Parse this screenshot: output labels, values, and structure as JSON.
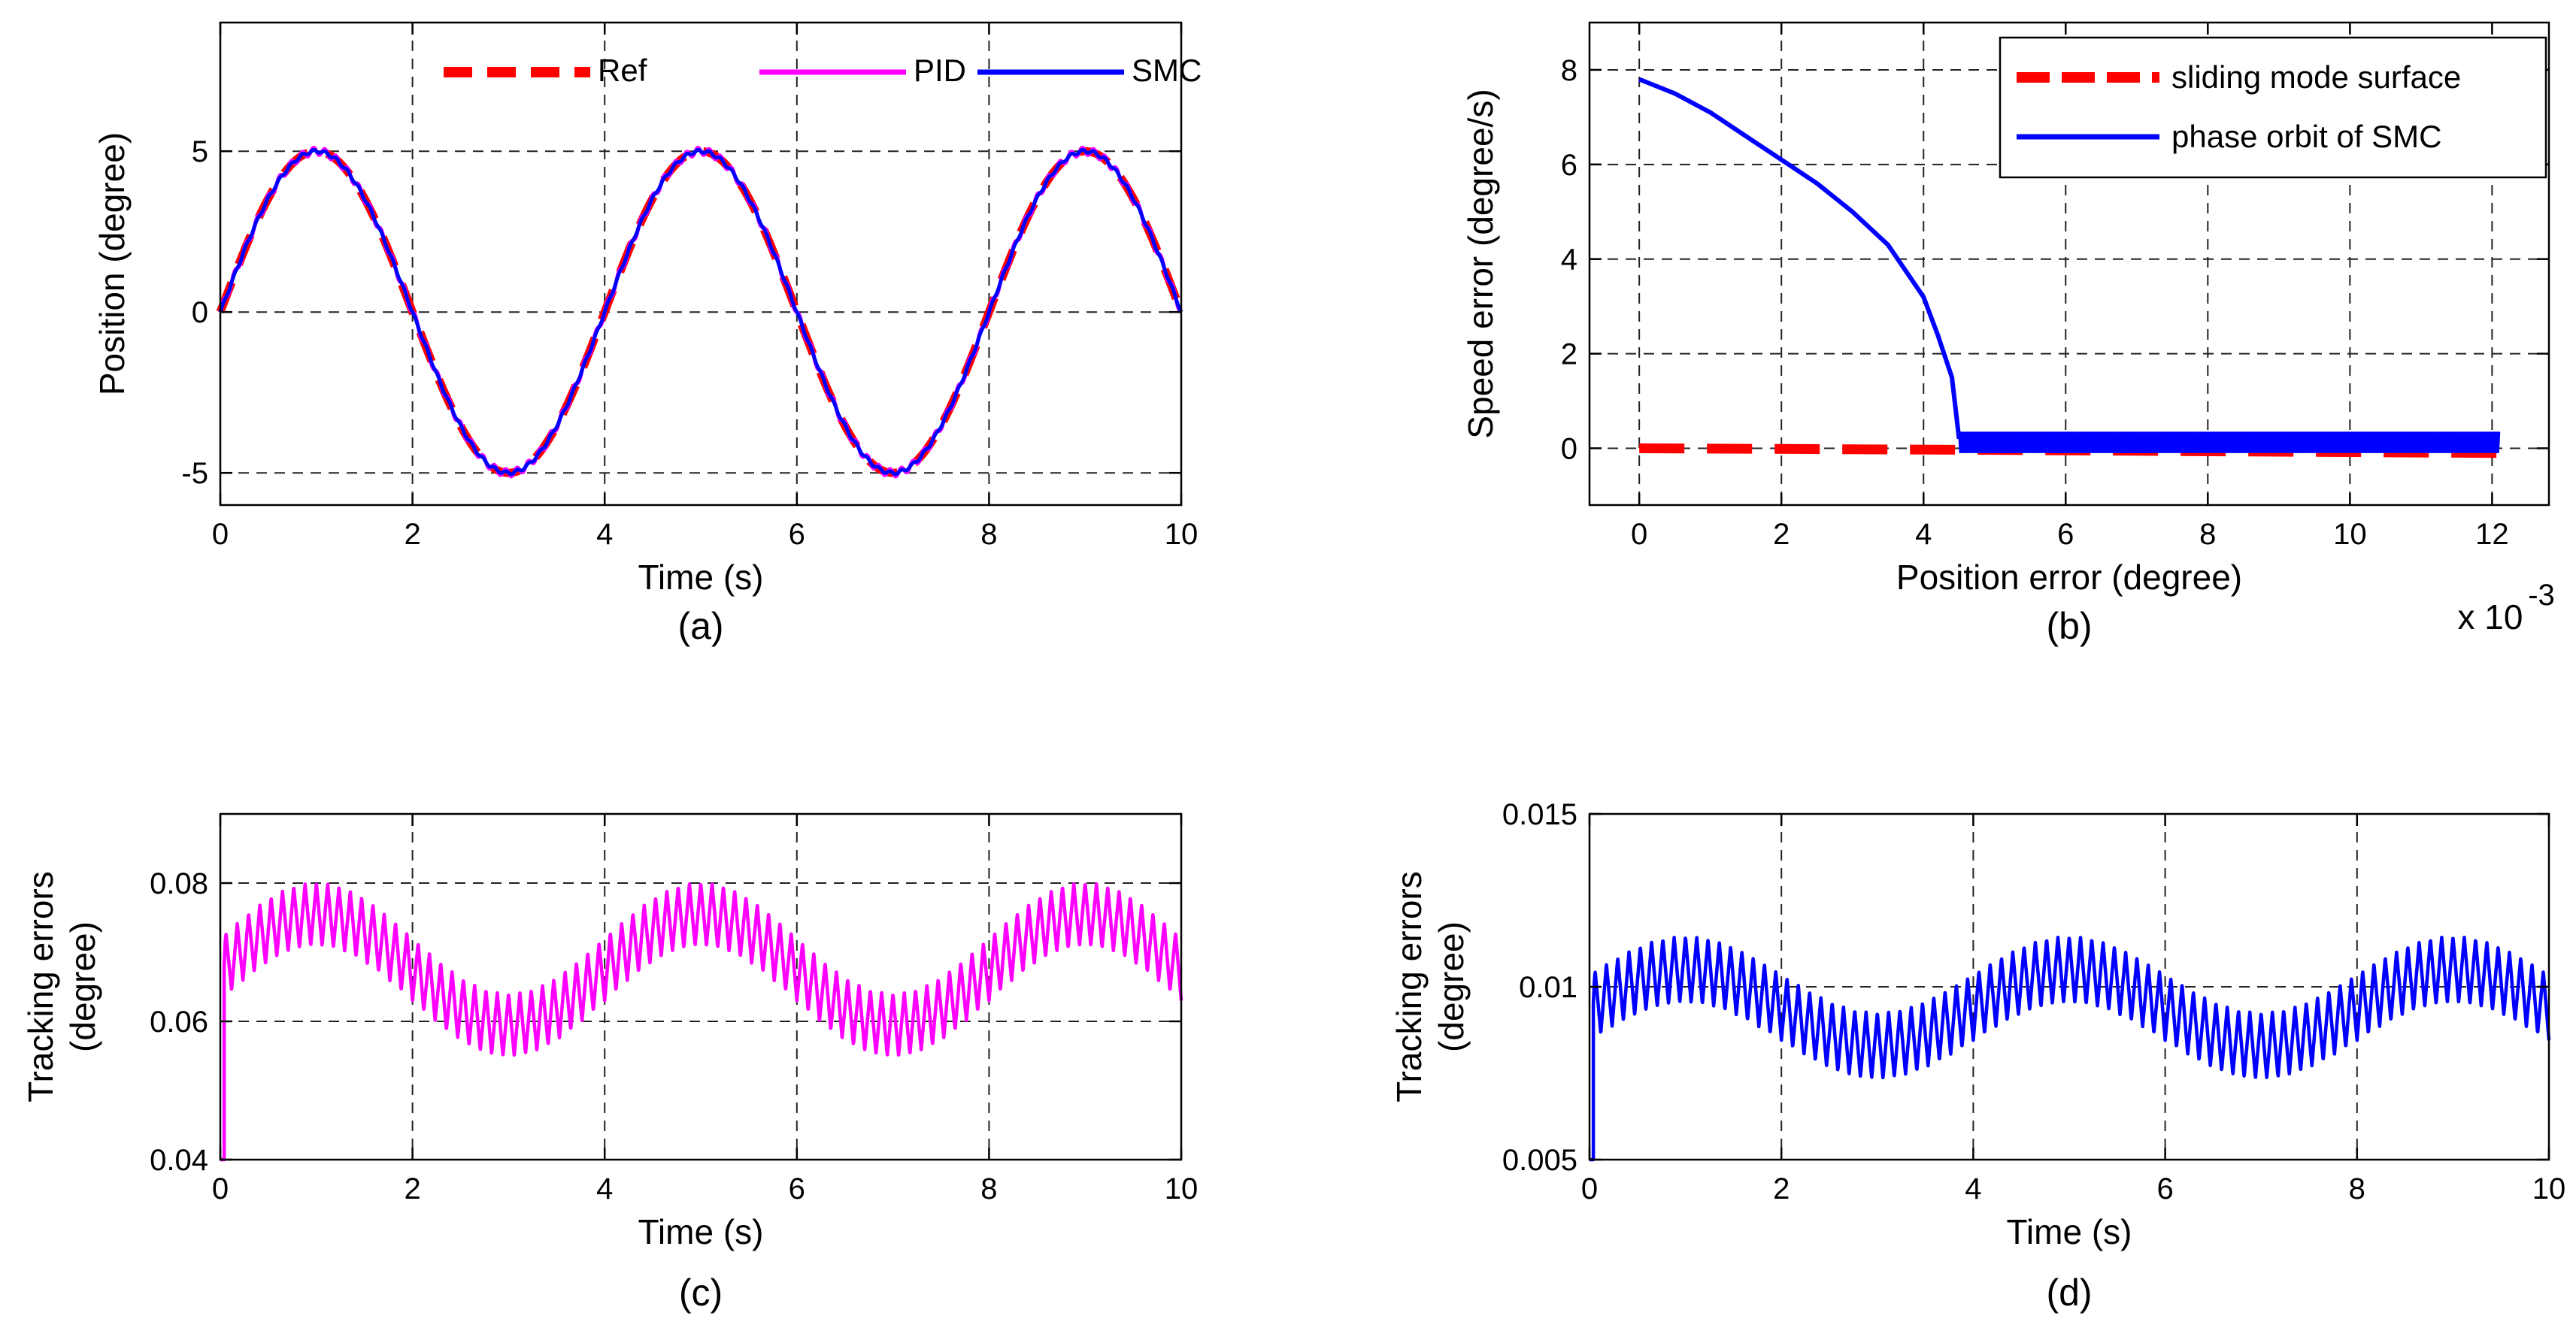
{
  "chart_data": [
    {
      "id": "a",
      "type": "line",
      "caption": "(a)",
      "xlabel": "Time (s)",
      "ylabel": "Position (degree)",
      "xlim": [
        0,
        10
      ],
      "ylim": [
        -6,
        9
      ],
      "xticks": [
        0,
        2,
        4,
        6,
        8,
        10
      ],
      "xtick_labels": [
        "0",
        "2",
        "4",
        "6",
        "8",
        "10"
      ],
      "yticks": [
        -5,
        0,
        5
      ],
      "ytick_labels": [
        "-5",
        "0",
        "5"
      ],
      "grid": true,
      "legend": {
        "placement": "top-right",
        "orientation": "horizontal"
      },
      "x": [
        0,
        0.5,
        1,
        1.5,
        2,
        2.5,
        3,
        3.5,
        4,
        4.5,
        5,
        5.5,
        6,
        6.5,
        7,
        7.5,
        8,
        8.5,
        9,
        9.5,
        10
      ],
      "series": [
        {
          "name": "Ref",
          "color": "#ff0000",
          "style": "dashed",
          "values": [
            0,
            3.54,
            5,
            3.54,
            0,
            -3.54,
            -5,
            -3.54,
            0,
            3.54,
            5,
            3.54,
            0,
            -3.54,
            -5,
            -3.54,
            0,
            3.54,
            5,
            3.54,
            0
          ]
        },
        {
          "name": "PID",
          "color": "#ff00ff",
          "style": "solid",
          "values": [
            0,
            3.5,
            5,
            3.5,
            0,
            -3.5,
            -5,
            -3.5,
            0,
            3.5,
            5,
            3.5,
            0,
            -3.5,
            -5,
            -3.5,
            0,
            3.5,
            5,
            3.5,
            0
          ]
        },
        {
          "name": "SMC",
          "color": "#0000ff",
          "style": "solid",
          "values": [
            0,
            3.54,
            5,
            3.54,
            0,
            -3.54,
            -5,
            -3.54,
            0,
            3.54,
            5,
            3.54,
            0,
            -3.54,
            -5,
            -3.54,
            0,
            3.54,
            5,
            3.54,
            0
          ]
        }
      ]
    },
    {
      "id": "b",
      "type": "line",
      "caption": "(b)",
      "xlabel": "Position error (degree)",
      "ylabel": "Speed error (degree/s)",
      "x_exponent_base": "x 10",
      "x_exponent_power": "-3",
      "xlim": [
        -0.7,
        12.8
      ],
      "ylim": [
        -1.2,
        9
      ],
      "xticks": [
        0,
        2,
        4,
        6,
        8,
        10,
        12
      ],
      "xtick_labels": [
        "0",
        "2",
        "4",
        "6",
        "8",
        "10",
        "12"
      ],
      "yticks": [
        0,
        2,
        4,
        6,
        8
      ],
      "ytick_labels": [
        "0",
        "2",
        "4",
        "6",
        "8"
      ],
      "grid": true,
      "legend": {
        "placement": "top-right",
        "orientation": "vertical"
      },
      "series": [
        {
          "name": "sliding mode surface",
          "color": "#ff0000",
          "style": "dashed",
          "x": [
            0,
            4.5,
            12.1
          ],
          "values": [
            0,
            -0.03,
            -0.1
          ]
        },
        {
          "name": "phase orbit of SMC",
          "color": "#0000ff",
          "style": "solid",
          "x": [
            0,
            0.5,
            1,
            1.5,
            2,
            2.5,
            3,
            3.5,
            4,
            4.2,
            4.4,
            4.5
          ],
          "values": [
            7.8,
            7.5,
            7.1,
            6.6,
            6.1,
            5.6,
            5.0,
            4.3,
            3.2,
            2.4,
            1.5,
            0.2
          ],
          "chatter": {
            "x_range": [
              4.5,
              12.1
            ],
            "band": [
              -0.1,
              0.35
            ]
          }
        }
      ]
    },
    {
      "id": "c",
      "type": "line",
      "caption": "(c)",
      "xlabel": "Time (s)",
      "ylabel": "Tracking errors",
      "ylabel2": "(degree)",
      "xlim": [
        0,
        10
      ],
      "ylim": [
        0.04,
        0.09
      ],
      "xticks": [
        0,
        2,
        4,
        6,
        8,
        10
      ],
      "xtick_labels": [
        "0",
        "2",
        "4",
        "6",
        "8",
        "10"
      ],
      "yticks": [
        0.04,
        0.06,
        0.08
      ],
      "ytick_labels": [
        "0.04",
        "0.06",
        "0.08"
      ],
      "grid": true,
      "series": [
        {
          "name": "PID",
          "color": "#ff00ff",
          "style": "solid",
          "start": 0.04,
          "rise_to": 0.068,
          "mean": 0.0675,
          "envelope": 0.008,
          "ripple": 0.009,
          "ripple_freq": 8.5,
          "wave_period": 4
        }
      ]
    },
    {
      "id": "d",
      "type": "line",
      "caption": "(d)",
      "xlabel": "Time (s)",
      "ylabel": "Tracking errors",
      "ylabel2": "(degree)",
      "xlim": [
        0,
        10
      ],
      "ylim": [
        0.005,
        0.015
      ],
      "xticks": [
        0,
        2,
        4,
        6,
        8,
        10
      ],
      "xtick_labels": [
        "0",
        "2",
        "4",
        "6",
        "8",
        "10"
      ],
      "yticks": [
        0.005,
        0.01,
        0.015
      ],
      "ytick_labels": [
        "0.005",
        "0.01",
        "0.015"
      ],
      "grid": true,
      "series": [
        {
          "name": "SMC",
          "color": "#0000ff",
          "style": "solid",
          "start": 0.005,
          "rise_to": 0.0095,
          "mean": 0.0094,
          "envelope": 0.0011,
          "ripple": 0.0019,
          "ripple_freq": 8.5,
          "wave_period": 4
        }
      ]
    }
  ]
}
